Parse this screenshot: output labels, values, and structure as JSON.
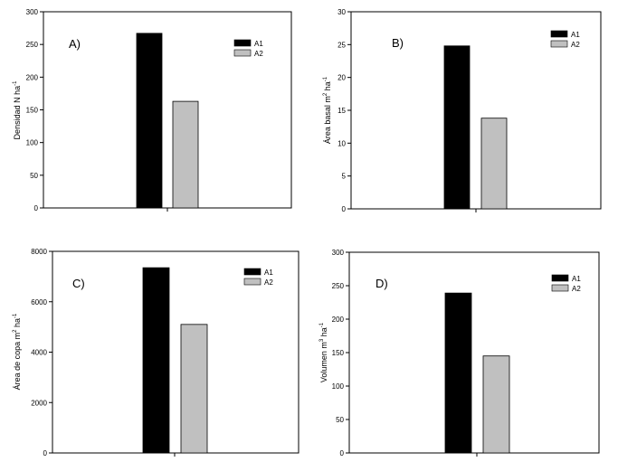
{
  "chart_data": [
    {
      "type": "bar",
      "panel_label": "A)",
      "ylabel_main": "Densidad N ha",
      "ylabel_sup": "-1",
      "ylim": [
        0,
        300
      ],
      "yticks": [
        "0",
        "50",
        "100",
        "150",
        "200",
        "250",
        "300"
      ],
      "ytick_values": [
        0,
        50,
        100,
        150,
        200,
        250,
        300
      ],
      "series": [
        {
          "name": "A1",
          "value": 267,
          "color": "#000000"
        },
        {
          "name": "A2",
          "value": 163,
          "color": "#c0c0c0"
        }
      ]
    },
    {
      "type": "bar",
      "panel_label": "B)",
      "ylabel_pre": "Área basal m",
      "ylabel_sup1": "2",
      "ylabel_mid": " ha",
      "ylabel_sup": "-1",
      "ylim": [
        0,
        30
      ],
      "yticks": [
        "0",
        "5",
        "10",
        "15",
        "20",
        "25",
        "30"
      ],
      "ytick_values": [
        0,
        5,
        10,
        15,
        20,
        25,
        30
      ],
      "series": [
        {
          "name": "A1",
          "value": 24.8,
          "color": "#000000"
        },
        {
          "name": "A2",
          "value": 13.8,
          "color": "#c0c0c0"
        }
      ]
    },
    {
      "type": "bar",
      "panel_label": "C)",
      "ylabel_pre": "Área de copa m",
      "ylabel_sup1": "2",
      "ylabel_mid": " ha",
      "ylabel_sup": "-1",
      "ylim": [
        0,
        8000
      ],
      "yticks": [
        "0",
        "2000",
        "4000",
        "6000",
        "8000"
      ],
      "ytick_values": [
        0,
        2000,
        4000,
        6000,
        8000
      ],
      "series": [
        {
          "name": "A1",
          "value": 7350,
          "color": "#000000"
        },
        {
          "name": "A2",
          "value": 5100,
          "color": "#c0c0c0"
        }
      ]
    },
    {
      "type": "bar",
      "panel_label": "D)",
      "ylabel_pre": "Volumen m",
      "ylabel_sup1": "3",
      "ylabel_mid": " ha",
      "ylabel_sup": "-1",
      "ylim": [
        0,
        300
      ],
      "yticks": [
        "0",
        "50",
        "100",
        "150",
        "200",
        "250",
        "300"
      ],
      "ytick_values": [
        0,
        50,
        100,
        150,
        200,
        250,
        300
      ],
      "series": [
        {
          "name": "A1",
          "value": 239,
          "color": "#000000"
        },
        {
          "name": "A2",
          "value": 145,
          "color": "#c0c0c0"
        }
      ]
    }
  ]
}
